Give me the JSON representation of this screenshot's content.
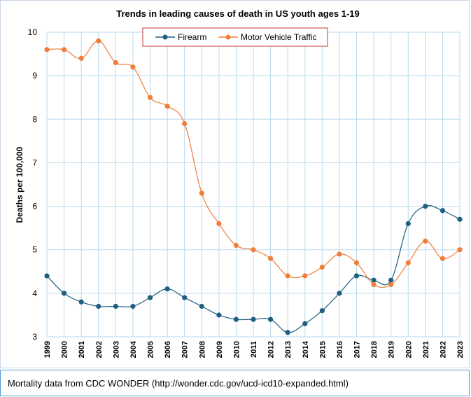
{
  "chart_data": {
    "type": "line",
    "title": "Trends in leading causes of death in US youth ages 1-19",
    "xlabel": "",
    "ylabel": "Deaths per 100,000",
    "ylim": [
      3,
      10
    ],
    "yticks": [
      3,
      4,
      5,
      6,
      7,
      8,
      9,
      10
    ],
    "grid": true,
    "legend_position": "top",
    "categories": [
      "1999",
      "2000",
      "2001",
      "2002",
      "2003",
      "2004",
      "2005",
      "2006",
      "2007",
      "2008",
      "2009",
      "2010",
      "2011",
      "2012",
      "2013",
      "2014",
      "2015",
      "2016",
      "2017",
      "2018",
      "2019",
      "2020",
      "2021",
      "2022",
      "2023"
    ],
    "series": [
      {
        "name": "Firearm",
        "color": "#1f5f7f",
        "values": [
          4.4,
          4.0,
          3.8,
          3.7,
          3.7,
          3.7,
          3.9,
          4.1,
          3.9,
          3.7,
          3.5,
          3.4,
          3.4,
          3.4,
          3.1,
          3.3,
          3.6,
          4.0,
          4.4,
          4.3,
          4.3,
          5.6,
          6.0,
          5.9,
          5.7
        ]
      },
      {
        "name": "Motor Vehicle Traffic",
        "color": "#f07e3a",
        "values": [
          9.6,
          9.6,
          9.4,
          9.8,
          9.3,
          9.2,
          8.5,
          8.3,
          7.9,
          6.3,
          5.6,
          5.1,
          5.0,
          4.8,
          4.4,
          4.4,
          4.6,
          4.9,
          4.7,
          4.2,
          4.2,
          4.7,
          5.2,
          4.8,
          5.0
        ]
      }
    ]
  },
  "footer": {
    "text": "Mortality data from CDC WONDER (http://wonder.cdc.gov/ucd-icd10-expanded.html)"
  },
  "colors": {
    "grid": "#b9d9ec",
    "frame": "#c8d6e5",
    "footer_border": "#5b9bd5",
    "legend_border": "#c0392b"
  }
}
